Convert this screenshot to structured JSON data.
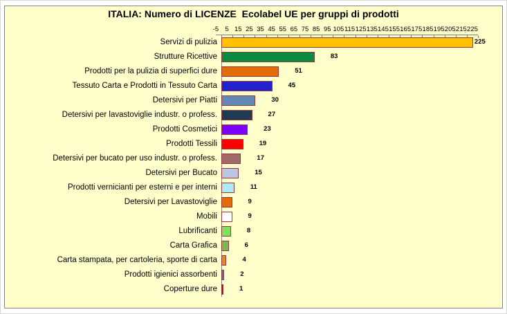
{
  "chart": {
    "title": "ITALIA: Numero di LICENZE  Ecolabel UE per gruppi di prodotti",
    "background_color": "#FFFFCC",
    "frame_border_color": "#848484",
    "bar_border_color": "#953735",
    "axis_color": "#808080"
  },
  "chart_data": {
    "type": "bar",
    "orientation": "horizontal",
    "title": "ITALIA: Numero di LICENZE  Ecolabel UE per gruppi di prodotti",
    "categories": [
      "Servizi di pulizia",
      "Strutture Ricettive",
      "Prodotti per la pulizia di superfici dure",
      "Tessuto Carta e Prodotti in Tessuto Carta",
      "Detersivi per Piatti",
      "Detersivi per lavastoviglie industr. o profess.",
      "Prodotti Cosmetici",
      "Prodotti Tessili",
      "Detersivi per bucato per uso industr. o profess.",
      "Detersivi per Bucato",
      "Prodotti vernicianti per esterni e per interni",
      "Detersivi per Lavastoviglie",
      "Mobili",
      "Lubrificanti",
      "Carta Grafica",
      "Carta stampata, per cartoleria, sporte di carta",
      "Prodotti igienici assorbenti",
      "Coperture dure"
    ],
    "values": [
      225,
      83,
      51,
      45,
      30,
      27,
      23,
      19,
      17,
      15,
      11,
      9,
      9,
      8,
      6,
      4,
      2,
      1
    ],
    "bar_colors": [
      "#FFC000",
      "#098C42",
      "#E26B0A",
      "#2222CC",
      "#6089B8",
      "#1F3B54",
      "#7B00FE",
      "#FF0000",
      "#A26969",
      "#BAC6E2",
      "#AEE9FA",
      "#E26B0A",
      "#FDFDFF",
      "#7EE25E",
      "#7CB951",
      "#DB8B37",
      "#5E6BAD",
      "#27417C"
    ],
    "data_labels_shown": true,
    "x_axis": {
      "position": "top",
      "min": -5,
      "max": 225,
      "major_unit": 10,
      "tick_labels": [
        "-5",
        "5",
        "15",
        "25",
        "35",
        "45",
        "55",
        "65",
        "75",
        "85",
        "95",
        "105",
        "115",
        "125",
        "135",
        "145",
        "155",
        "165",
        "175",
        "185",
        "195",
        "205",
        "215",
        "225"
      ]
    },
    "grid": false,
    "legend": false
  }
}
